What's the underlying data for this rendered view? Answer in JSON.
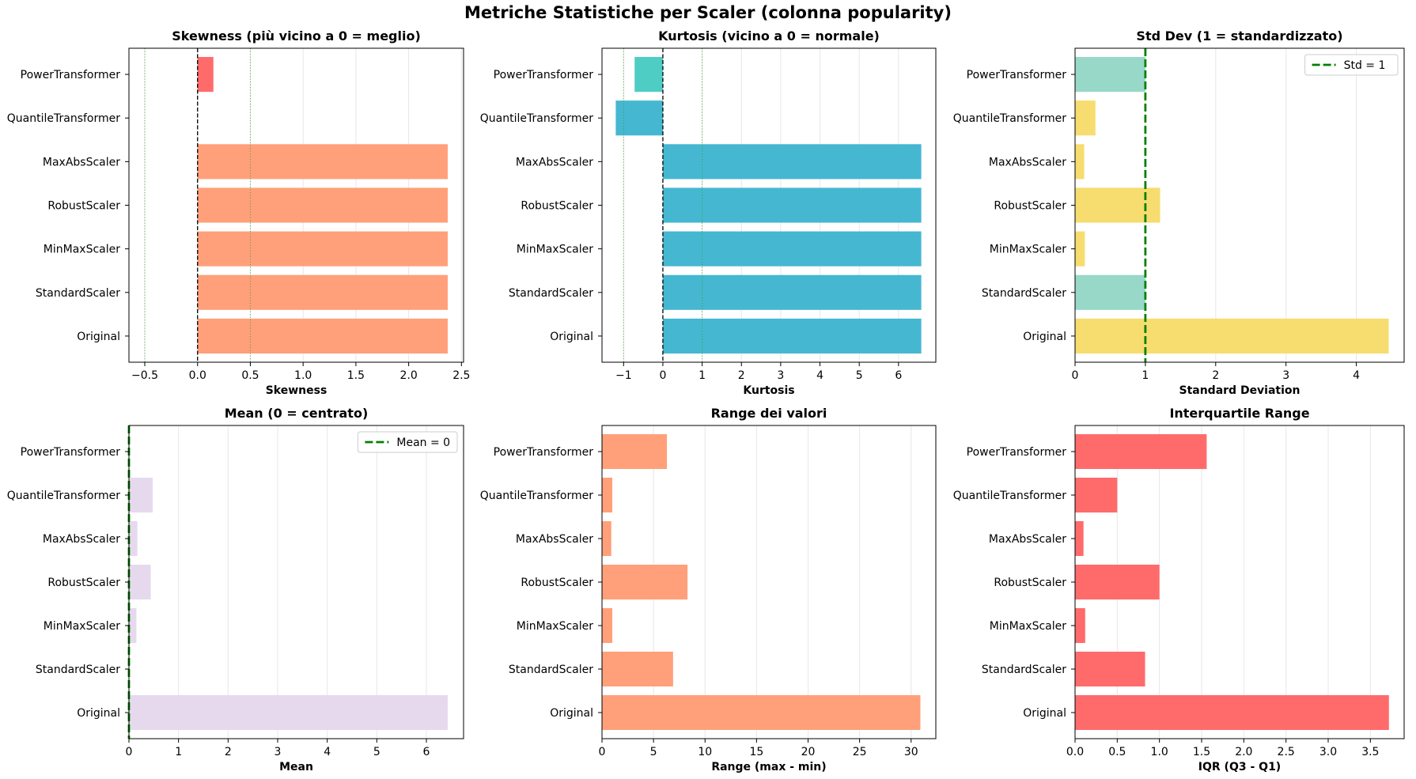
{
  "suptitle": "Metriche Statistiche per Scaler (colonna popularity)",
  "categories": [
    "Original",
    "StandardScaler",
    "MinMaxScaler",
    "RobustScaler",
    "MaxAbsScaler",
    "QuantileTransformer",
    "PowerTransformer"
  ],
  "chart_data": [
    {
      "type": "bar",
      "orientation": "horizontal",
      "title": "Skewness (più vicino a 0 = meglio)",
      "xlabel": "Skewness",
      "ylabel": "",
      "xlim": [
        -0.65,
        2.52
      ],
      "xticks": [
        -0.5,
        0.0,
        0.5,
        1.0,
        1.5,
        2.0,
        2.5
      ],
      "xtick_labels": [
        "−0.5",
        "0.0",
        "0.5",
        "1.0",
        "1.5",
        "2.0",
        "2.5"
      ],
      "categories": [
        "Original",
        "StandardScaler",
        "MinMaxScaler",
        "RobustScaler",
        "MaxAbsScaler",
        "QuantileTransformer",
        "PowerTransformer"
      ],
      "values": [
        2.37,
        2.37,
        2.37,
        2.37,
        2.37,
        0.0,
        0.15
      ],
      "colors": [
        "#ffa07a",
        "#ffa07a",
        "#ffa07a",
        "#ffa07a",
        "#ffa07a",
        "#ff6b6b",
        "#ff6b6b"
      ],
      "reference_lines": [
        {
          "value": 0,
          "style": "dashed",
          "color": "#000000",
          "label": ""
        },
        {
          "value": -0.5,
          "style": "dotted",
          "color": "#2ca02c",
          "label": ""
        },
        {
          "value": 0.5,
          "style": "dotted",
          "color": "#2ca02c",
          "label": ""
        }
      ],
      "grid": "x",
      "legend": null
    },
    {
      "type": "bar",
      "orientation": "horizontal",
      "title": "Kurtosis (vicino a 0 = normale)",
      "xlabel": "Kurtosis",
      "ylabel": "",
      "xlim": [
        -1.55,
        6.95
      ],
      "xticks": [
        -1,
        0,
        1,
        2,
        3,
        4,
        5,
        6
      ],
      "xtick_labels": [
        "−1",
        "0",
        "1",
        "2",
        "3",
        "4",
        "5",
        "6"
      ],
      "categories": [
        "Original",
        "StandardScaler",
        "MinMaxScaler",
        "RobustScaler",
        "MaxAbsScaler",
        "QuantileTransformer",
        "PowerTransformer"
      ],
      "values": [
        6.58,
        6.58,
        6.58,
        6.58,
        6.58,
        -1.2,
        -0.72
      ],
      "colors": [
        "#45b7d1",
        "#45b7d1",
        "#45b7d1",
        "#45b7d1",
        "#45b7d1",
        "#45b7d1",
        "#4ecdc4"
      ],
      "reference_lines": [
        {
          "value": 0,
          "style": "dashed",
          "color": "#000000",
          "label": ""
        },
        {
          "value": -1,
          "style": "dotted",
          "color": "#2ca02c",
          "label": ""
        },
        {
          "value": 1,
          "style": "dotted",
          "color": "#2ca02c",
          "label": ""
        }
      ],
      "grid": "x",
      "legend": null
    },
    {
      "type": "bar",
      "orientation": "horizontal",
      "title": "Std Dev (1 = standardizzato)",
      "xlabel": "Standard Deviation",
      "ylabel": "",
      "xlim": [
        0,
        4.68
      ],
      "xticks": [
        0,
        1,
        2,
        3,
        4
      ],
      "xtick_labels": [
        "0",
        "1",
        "2",
        "3",
        "4"
      ],
      "categories": [
        "Original",
        "StandardScaler",
        "MinMaxScaler",
        "RobustScaler",
        "MaxAbsScaler",
        "QuantileTransformer",
        "PowerTransformer"
      ],
      "values": [
        4.46,
        1.0,
        0.14,
        1.21,
        0.13,
        0.29,
        1.0
      ],
      "colors": [
        "#f7dc6f",
        "#98d8c8",
        "#f7dc6f",
        "#f7dc6f",
        "#f7dc6f",
        "#f7dc6f",
        "#98d8c8"
      ],
      "reference_lines": [
        {
          "value": 1,
          "style": "dashed-bold",
          "color": "#008000",
          "label": "Std = 1"
        }
      ],
      "grid": "x",
      "legend": "top-right"
    },
    {
      "type": "bar",
      "orientation": "horizontal",
      "title": "Mean (0 = centrato)",
      "xlabel": "Mean",
      "ylabel": "",
      "xlim": [
        0,
        6.75
      ],
      "xticks": [
        0,
        1,
        2,
        3,
        4,
        5,
        6
      ],
      "xtick_labels": [
        "0",
        "1",
        "2",
        "3",
        "4",
        "5",
        "6"
      ],
      "categories": [
        "Original",
        "StandardScaler",
        "MinMaxScaler",
        "RobustScaler",
        "MaxAbsScaler",
        "QuantileTransformer",
        "PowerTransformer"
      ],
      "values": [
        6.43,
        0.0,
        0.15,
        0.44,
        0.17,
        0.48,
        0.0
      ],
      "colors": [
        "#e6d9ee",
        "#e6d9ee",
        "#e6d9ee",
        "#e6d9ee",
        "#e6d9ee",
        "#e6d9ee",
        "#e6d9ee"
      ],
      "reference_lines": [
        {
          "value": 0,
          "style": "dashed-bold",
          "color": "#008000",
          "label": "Mean = 0"
        }
      ],
      "grid": "x",
      "legend": "top-right"
    },
    {
      "type": "bar",
      "orientation": "horizontal",
      "title": "Range dei valori",
      "xlabel": "Range (max - min)",
      "ylabel": "",
      "xlim": [
        0,
        32.4
      ],
      "xticks": [
        0,
        5,
        10,
        15,
        20,
        25,
        30
      ],
      "xtick_labels": [
        "0",
        "5",
        "10",
        "15",
        "20",
        "25",
        "30"
      ],
      "categories": [
        "Original",
        "StandardScaler",
        "MinMaxScaler",
        "RobustScaler",
        "MaxAbsScaler",
        "QuantileTransformer",
        "PowerTransformer"
      ],
      "values": [
        30.9,
        6.9,
        1.0,
        8.3,
        0.9,
        1.0,
        6.3
      ],
      "colors": [
        "#ffa07a",
        "#ffa07a",
        "#ffa07a",
        "#ffa07a",
        "#ffa07a",
        "#ffa07a",
        "#ffa07a"
      ],
      "reference_lines": [],
      "grid": "x",
      "legend": null
    },
    {
      "type": "bar",
      "orientation": "horizontal",
      "title": "Interquartile Range",
      "xlabel": "IQR (Q3 - Q1)",
      "ylabel": "",
      "xlim": [
        0,
        3.9
      ],
      "xticks": [
        0.0,
        0.5,
        1.0,
        1.5,
        2.0,
        2.5,
        3.0,
        3.5
      ],
      "xtick_labels": [
        "0.0",
        "0.5",
        "1.0",
        "1.5",
        "2.0",
        "2.5",
        "3.0",
        "3.5"
      ],
      "categories": [
        "Original",
        "StandardScaler",
        "MinMaxScaler",
        "RobustScaler",
        "MaxAbsScaler",
        "QuantileTransformer",
        "PowerTransformer"
      ],
      "values": [
        3.72,
        0.83,
        0.12,
        1.0,
        0.1,
        0.5,
        1.56
      ],
      "colors": [
        "#ff6b6b",
        "#ff6b6b",
        "#ff6b6b",
        "#ff6b6b",
        "#ff6b6b",
        "#ff6b6b",
        "#ff6b6b"
      ],
      "reference_lines": [],
      "grid": "x",
      "legend": null
    }
  ]
}
